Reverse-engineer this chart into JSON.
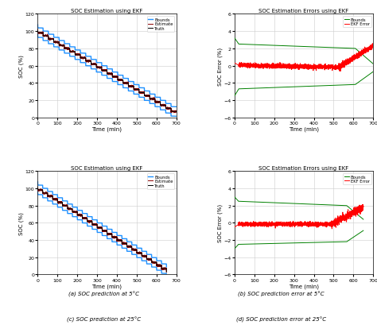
{
  "title_soc": "SOC Estimation using EKF",
  "title_err": "SOC Estimation Errors using EKF",
  "xlabel": "Time (min)",
  "ylabel_soc": "SOC (%)",
  "ylabel_err": "SOC Error (%)",
  "caption_a": "(a) SOC prediction at 5°C",
  "caption_b": "(b) SOC prediction error at 5°C",
  "caption_c": "(c) SOC prediction at 25°C",
  "caption_d": "(d) SOC prediction error at 25°C",
  "legend_soc": [
    "Truth",
    "Estimate",
    "Bounds"
  ],
  "legend_err": [
    "EKF Error",
    "Bounds"
  ],
  "soc_colors": [
    "black",
    "#8B0000",
    "#1E90FF"
  ],
  "err_colors": [
    "red",
    "green"
  ],
  "soc_ylim": [
    0,
    120
  ],
  "soc_yticks": [
    0,
    20,
    40,
    60,
    80,
    100,
    120
  ],
  "err_ylim": [
    -6,
    6
  ],
  "err_yticks": [
    -6,
    -4,
    -2,
    0,
    2,
    4,
    6
  ],
  "t_max_5c": 700,
  "t_max_25c": 650,
  "xlim_5c": [
    0,
    700
  ],
  "xlim_25c": [
    0,
    700
  ],
  "xticks_5c": [
    0,
    100,
    200,
    300,
    400,
    500,
    600,
    700
  ],
  "xticks_25c": [
    0,
    100,
    200,
    300,
    400,
    500,
    600,
    700
  ],
  "background_color": "white",
  "grid_color": "#cccccc"
}
